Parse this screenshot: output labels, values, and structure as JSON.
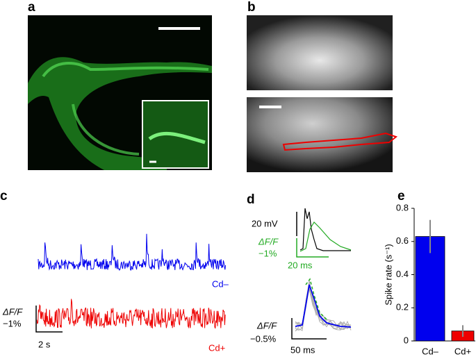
{
  "panels": {
    "a": {
      "label": "a"
    },
    "b": {
      "label": "b"
    },
    "c": {
      "label": "c",
      "scale_y": "ΔF/F",
      "scale_y_value": "−1%",
      "scale_x": "2 s",
      "trace_1": "Cd–",
      "trace_2": "Cd+"
    },
    "d": {
      "label": "d",
      "scale_v": "20 mV",
      "scale_f": "ΔF/F",
      "scale_f_value": "−1%",
      "scale_t": "20 ms",
      "scale_f2": "ΔF/F",
      "scale_f2_value": "−0.5%",
      "scale_t2": "50 ms"
    },
    "e": {
      "label": "e"
    }
  },
  "chart_data": {
    "type": "bar",
    "y_label": "Spike rate (s⁻¹)",
    "categories": [
      "Cd–",
      "Cd+"
    ],
    "values": [
      0.63,
      0.06
    ],
    "errors": [
      0.1,
      0.035
    ],
    "colors": [
      "#0000ee",
      "#ee0000"
    ],
    "error_color": "#888888",
    "ylim": [
      0,
      0.8
    ],
    "yticks": [
      0,
      0.2,
      0.4,
      0.6,
      0.8
    ]
  }
}
